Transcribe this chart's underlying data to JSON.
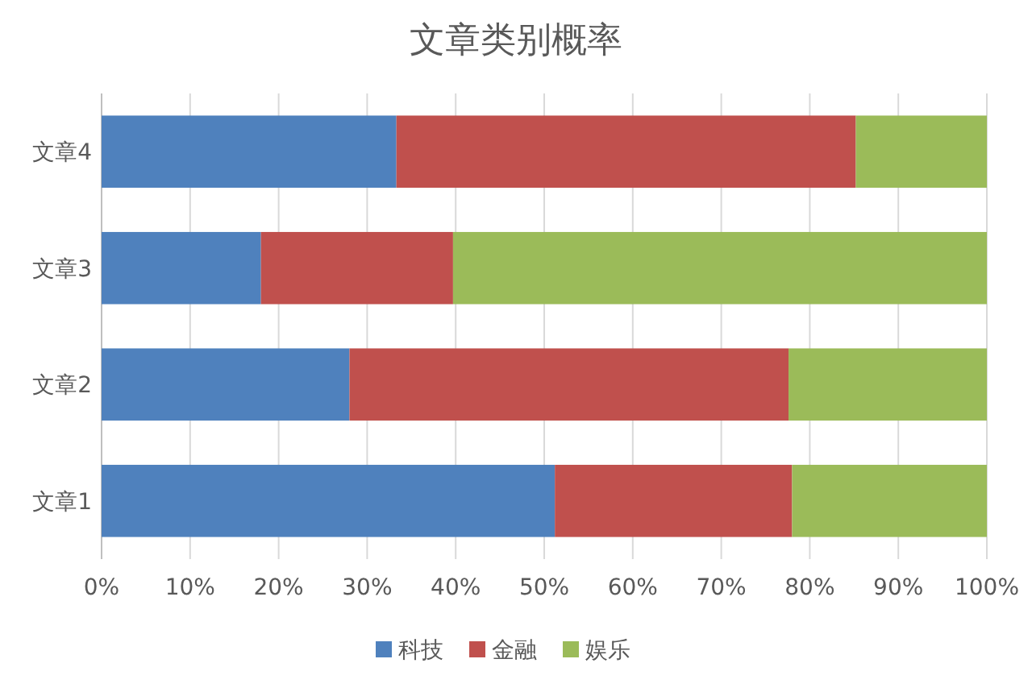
{
  "chart_data": {
    "type": "bar",
    "title": "文章类别概率",
    "orientation": "horizontal",
    "stacked": true,
    "categories": [
      "文章4",
      "文章3",
      "文章2",
      "文章1"
    ],
    "series": [
      {
        "name": "科技",
        "color": "#4f81bd",
        "values": [
          33.3,
          18.0,
          28.0,
          51.2
        ]
      },
      {
        "name": "金融",
        "color": "#c0504d",
        "values": [
          51.9,
          21.7,
          49.6,
          26.8
        ]
      },
      {
        "name": "娱乐",
        "color": "#9bbb59",
        "values": [
          14.8,
          60.3,
          22.4,
          22.0
        ]
      }
    ],
    "xlim": [
      0,
      100
    ],
    "xticks": [
      {
        "value": 0,
        "label": "0%"
      },
      {
        "value": 10,
        "label": "10%"
      },
      {
        "value": 20,
        "label": "20%"
      },
      {
        "value": 30,
        "label": "30%"
      },
      {
        "value": 40,
        "label": "40%"
      },
      {
        "value": 50,
        "label": "50%"
      },
      {
        "value": 60,
        "label": "60%"
      },
      {
        "value": 70,
        "label": "70%"
      },
      {
        "value": 80,
        "label": "80%"
      },
      {
        "value": 90,
        "label": "90%"
      },
      {
        "value": 100,
        "label": "100%"
      }
    ],
    "grid": "x",
    "legend": "bottom"
  }
}
